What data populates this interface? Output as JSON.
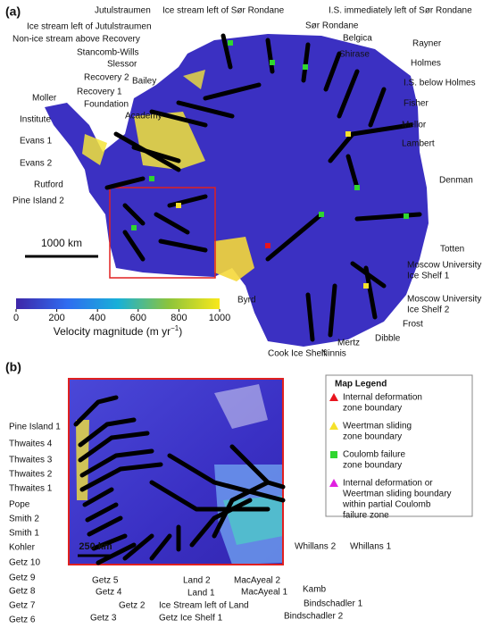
{
  "panel_a": {
    "label": "(a)",
    "labels": [
      "Jutulstraumen",
      "Ice stream left of Sør Rondane",
      "I.S. immediately left of Sør Rondane",
      "Ice stream left of Jutulstraumen",
      "Sør Rondane",
      "Non-ice stream above Recovery",
      "Belgica",
      "Stancomb-Wills",
      "Rayner",
      "Shirase",
      "Slessor",
      "Holmes",
      "Recovery 2",
      "Bailey",
      "I.S. below Holmes",
      "Moller",
      "Recovery 1",
      "Foundation",
      "Fisher",
      "Academy",
      "Institute",
      "Mellor",
      "Evans 1",
      "Lambert",
      "Evans 2",
      "Rutford",
      "Pine Island 2",
      "Denman",
      "Totten",
      [
        "Moscow University",
        "Ice Shelf 1"
      ],
      [
        "Moscow University",
        "Ice Shelf 2"
      ],
      "Byrd",
      "Frost",
      "Dibble",
      "Mertz",
      "Cook Ice Shelf",
      "Ninnis"
    ],
    "scale_bar": "1000 km",
    "colorbar": {
      "ticks": [
        0,
        200,
        400,
        600,
        800,
        1000
      ],
      "label": "Velocity magnitude (m yr",
      "label_superscript": "−1",
      "label_end": ")"
    }
  },
  "panel_b": {
    "label": "(b)",
    "labels": [
      "Pine Island 1",
      "Thwaites 4",
      "Thwaites 3",
      "Thwaites 2",
      "Thwaites 1",
      "Pope",
      "Smith 2",
      "Smith 1",
      "Kohler",
      "Getz 10",
      "Getz 9",
      "Getz 8",
      "Getz 7",
      "Getz 6",
      "Getz 5",
      "Getz 4",
      "Getz 3",
      "Getz 2",
      "Getz Ice Shelf 1",
      "Ice Stream left of Land",
      "Land 2",
      "Land 1",
      "MacAyeal 2",
      "MacAyeal 1",
      "Bindschadler 2",
      "Bindschadler 1",
      "Kamb",
      "Whillans 2",
      "Whillans 1"
    ],
    "scale_bar": "250 km"
  },
  "legend": {
    "title": "Map Legend",
    "items": [
      {
        "color": "#e8141e",
        "shape": "triangle",
        "lines": [
          "Internal deformation",
          "zone boundary"
        ]
      },
      {
        "color": "#f5e12a",
        "shape": "triangle",
        "lines": [
          "Weertman sliding",
          "zone boundary"
        ]
      },
      {
        "color": "#2fd62f",
        "shape": "square",
        "lines": [
          "Coulomb failure",
          "zone boundary"
        ]
      },
      {
        "color": "#e020e0",
        "shape": "triangle",
        "lines": [
          "Internal deformation or",
          "Weertman sliding boundary",
          "within partial Coulomb",
          "failure zone"
        ]
      }
    ]
  }
}
